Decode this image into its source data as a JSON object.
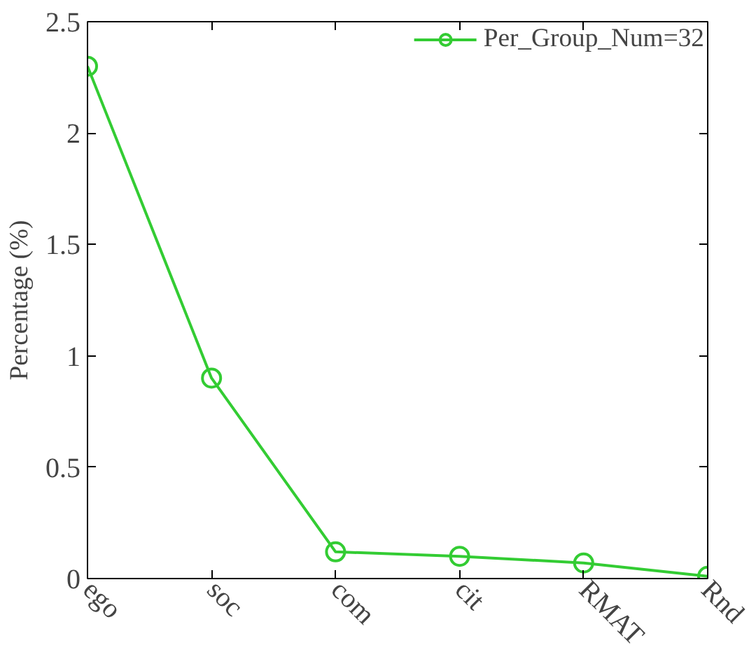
{
  "chart_data": {
    "type": "line",
    "ylabel": "Percentage (%)",
    "categories": [
      "ego",
      "soc",
      "com",
      "cit",
      "RMAT",
      "Rnd"
    ],
    "series": [
      {
        "name": "Per_Group_Num=32",
        "color": "#33cc33",
        "values": [
          2.3,
          0.9,
          0.12,
          0.1,
          0.07,
          0.01
        ]
      }
    ],
    "ylim": [
      0,
      2.5
    ],
    "yticks": [
      0,
      0.5,
      1,
      1.5,
      2,
      2.5
    ],
    "grid": false,
    "legend": "top right",
    "marker": "circle",
    "line_style": "solid"
  }
}
